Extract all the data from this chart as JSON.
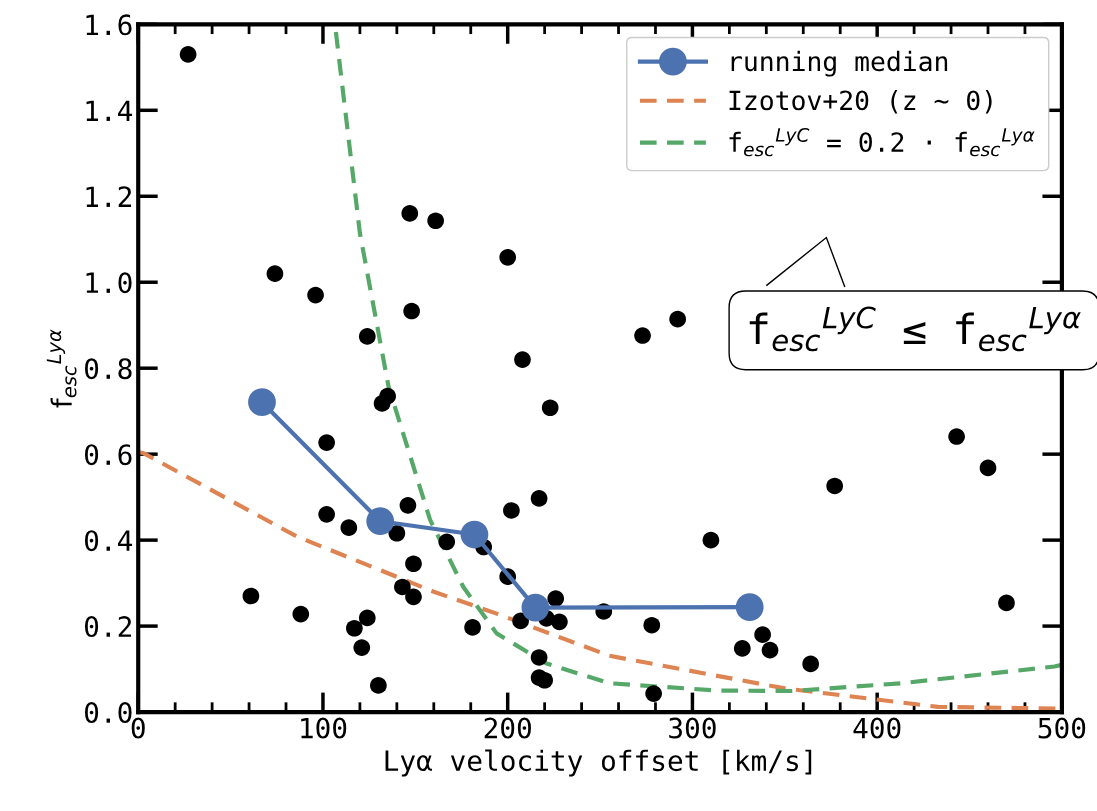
{
  "chart_data": {
    "type": "scatter",
    "xlabel": "Lyα velocity offset [km/s]",
    "ylabel": "f$_{esc}$$^{Lyα}$",
    "xlim": [
      0,
      500
    ],
    "xticks": [
      0,
      100,
      200,
      300,
      400,
      500
    ],
    "ylim": [
      0,
      1.6
    ],
    "yticks": [
      {
        "value": 0,
        "label": "0.0"
      },
      {
        "value": 0.2,
        "label": "0.2"
      },
      {
        "value": 0.4,
        "label": "0.4"
      },
      {
        "value": 0.6,
        "label": "0.6"
      },
      {
        "value": 0.8,
        "label": "0.8"
      },
      {
        "value": 1,
        "label": "1.0"
      },
      {
        "value": 1.2,
        "label": "1.2"
      },
      {
        "value": 1.4,
        "label": "1.4"
      },
      {
        "value": 1.6,
        "label": "1.6"
      }
    ],
    "grid": false,
    "legend": "top right",
    "annotations": [
      "f$_{esc}$$^{LyC}$ ≤ f$_{esc}$$^{Lyα}$"
    ],
    "series": [
      {
        "color": "#000000",
        "marker": "circle",
        "x": [
          27,
          74,
          96,
          147,
          161,
          200,
          124,
          148,
          273,
          292,
          208,
          223,
          102,
          132,
          135,
          102,
          114,
          140,
          146,
          149,
          143,
          149,
          167,
          187,
          202,
          217,
          200,
          226,
          228,
          221,
          207,
          181,
          217,
          217,
          220,
          252,
          61,
          88,
          117,
          124,
          121,
          130,
          310,
          377,
          443,
          460,
          470,
          278,
          327,
          338,
          342,
          364,
          279
        ],
        "values": [
          1.53,
          1.02,
          0.97,
          1.16,
          1.143,
          1.058,
          0.874,
          0.933,
          0.876,
          0.914,
          0.82,
          0.708,
          0.627,
          0.718,
          0.735,
          0.46,
          0.429,
          0.416,
          0.481,
          0.345,
          0.291,
          0.268,
          0.396,
          0.384,
          0.469,
          0.497,
          0.315,
          0.264,
          0.21,
          0.218,
          0.212,
          0.197,
          0.127,
          0.08,
          0.074,
          0.234,
          0.27,
          0.228,
          0.195,
          0.219,
          0.15,
          0.062,
          0.4,
          0.526,
          0.641,
          0.568,
          0.254,
          0.202,
          0.148,
          0.18,
          0.144,
          0.112,
          0.043
        ]
      },
      {
        "type": "line",
        "name": "running median",
        "color": "#4c72b0",
        "marker": "circle",
        "line_style": "solid",
        "x": [
          67,
          131,
          182,
          215,
          331
        ],
        "values": [
          0.721,
          0.444,
          0.413,
          0.243,
          0.244
        ]
      },
      {
        "type": "line",
        "name": "Izotov+20 (z ∼ 0)",
        "color": "#dd8452",
        "marker": "none",
        "line_style": "dashed",
        "x": [
          0,
          3,
          86,
          160,
          194,
          255,
          350,
          433,
          500
        ],
        "values": [
          0.605,
          0.602,
          0.408,
          0.28,
          0.229,
          0.131,
          0.055,
          0.012,
          0.008
        ]
      },
      {
        "type": "line",
        "name": "f$_{esc}$$^{LyC}$ = 0.2 · f$_{esc}$$^{Lyα}$",
        "color": "#55a868",
        "marker": "none",
        "line_style": "dashed",
        "x": [
          107,
          120,
          135.5,
          158,
          176,
          194,
          221,
          255,
          314,
          354,
          413,
          496,
          500
        ],
        "values": [
          1.582,
          1.114,
          0.757,
          0.447,
          0.291,
          0.183,
          0.113,
          0.067,
          0.05,
          0.049,
          0.067,
          0.106,
          0.11
        ]
      }
    ]
  }
}
